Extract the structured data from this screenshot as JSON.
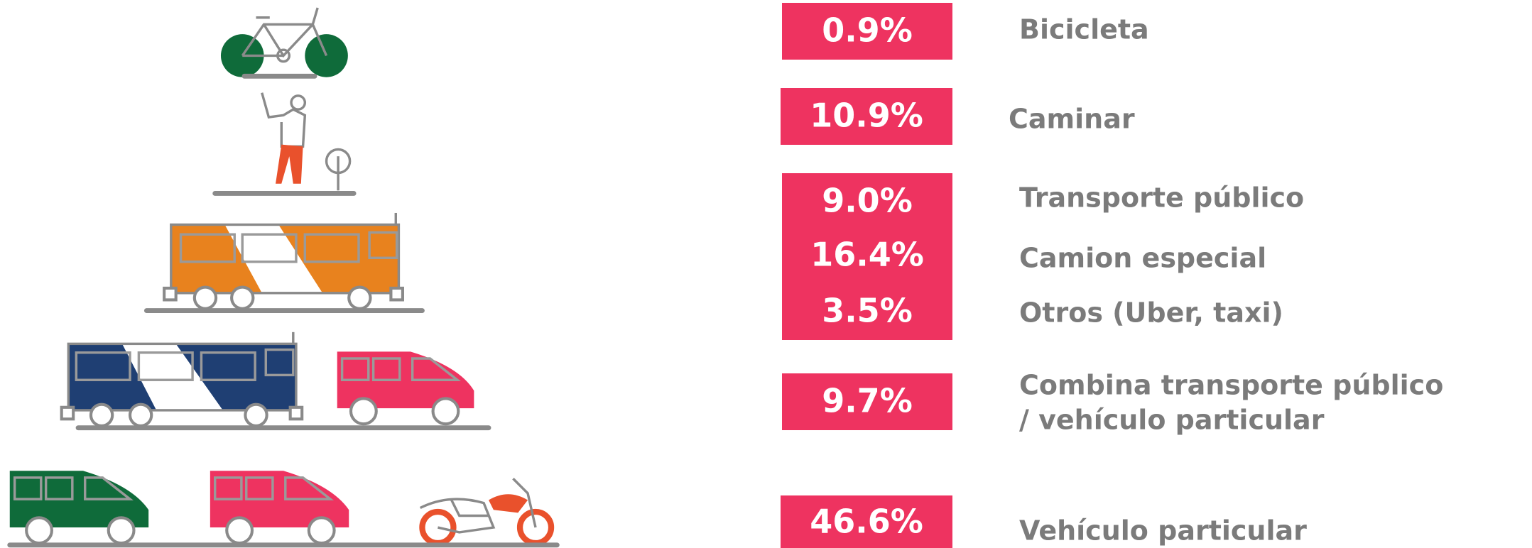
{
  "items": [
    {
      "values": [
        "0.9%"
      ],
      "labels": [
        "Bicicleta"
      ]
    },
    {
      "values": [
        "10.9%"
      ],
      "labels": [
        "Caminar"
      ]
    },
    {
      "values": [
        "9.0%",
        "16.4%",
        "3.5%"
      ],
      "labels": [
        "Transporte público",
        "Camion especial",
        "Otros (Uber, taxi)"
      ]
    },
    {
      "values": [
        "9.7%"
      ],
      "labels": [
        "Combina transporte público",
        "/ vehículo particular"
      ]
    },
    {
      "values": [
        "46.6%"
      ],
      "labels": [
        "Vehículo particular"
      ]
    }
  ]
}
